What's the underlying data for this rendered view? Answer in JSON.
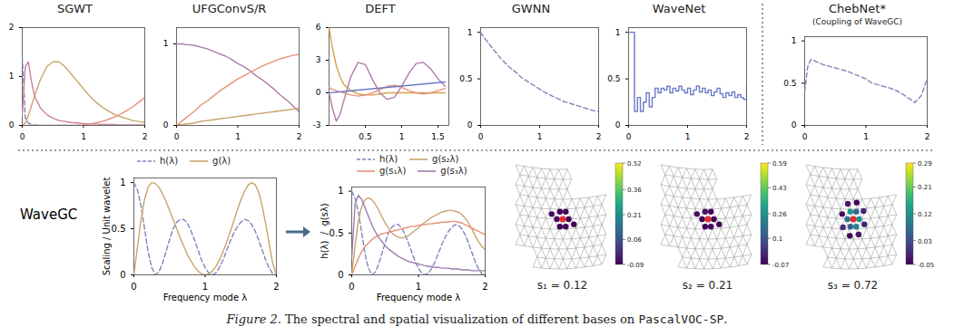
{
  "figure": {
    "row_label": "WaveGC",
    "caption": {
      "label": "Figure 2.",
      "text": "The spectral and spatial visualization of different bases on",
      "dataset": "PascalVOC-SP",
      "end": "."
    }
  },
  "chart_data": [
    {
      "type": "line",
      "title": "SGWT",
      "x": [
        0,
        0.05,
        0.1,
        0.15,
        0.2,
        0.3,
        0.4,
        0.5,
        0.6,
        0.7,
        0.8,
        0.9,
        1,
        1.1,
        1.2,
        1.3,
        1.4,
        1.5,
        1.6,
        1.7,
        1.8,
        1.9,
        2
      ],
      "xlim": [
        0,
        2
      ],
      "xticks": [
        0,
        1,
        2
      ],
      "ylim": [
        0,
        2
      ],
      "yticks": [
        0,
        1,
        2
      ],
      "series": [
        {
          "color": "#7e86b8",
          "line_style": "dashed",
          "values": [
            1.4,
            0.15,
            0.05,
            0.02,
            0.01,
            0,
            0,
            0,
            0,
            0,
            0,
            0,
            0,
            0,
            0,
            0,
            0,
            0,
            0,
            0,
            0,
            0,
            0
          ]
        },
        {
          "color": "#c9839a",
          "line_style": "solid",
          "values": [
            0.2,
            1.2,
            1.3,
            0.9,
            0.6,
            0.35,
            0.22,
            0.15,
            0.1,
            0.08,
            0.06,
            0.05,
            0.04,
            0.03,
            0.03,
            0.02,
            0.02,
            0.02,
            0.01,
            0.01,
            0.01,
            0.01,
            0.01
          ]
        },
        {
          "color": "#c9a46a",
          "line_style": "solid",
          "values": [
            0,
            0.05,
            0.2,
            0.4,
            0.6,
            0.95,
            1.2,
            1.3,
            1.3,
            1.2,
            1.05,
            0.9,
            0.75,
            0.6,
            0.48,
            0.38,
            0.3,
            0.23,
            0.18,
            0.14,
            0.1,
            0.08,
            0.06
          ]
        },
        {
          "color": "#e8907a",
          "line_style": "solid",
          "values": [
            0,
            0,
            0,
            0,
            0,
            0,
            0,
            0,
            0,
            0,
            0,
            0,
            0.01,
            0.03,
            0.05,
            0.08,
            0.12,
            0.17,
            0.23,
            0.3,
            0.38,
            0.47,
            0.57
          ]
        }
      ]
    },
    {
      "type": "line",
      "title": "UFGConvS/R",
      "x": [
        0,
        0.05,
        0.1,
        0.15,
        0.2,
        0.3,
        0.4,
        0.5,
        0.6,
        0.7,
        0.8,
        0.9,
        1,
        1.1,
        1.2,
        1.3,
        1.4,
        1.5,
        1.6,
        1.7,
        1.8,
        1.9,
        2
      ],
      "xlim": [
        0,
        2
      ],
      "xticks": [
        0,
        1,
        2
      ],
      "ylim": [
        0,
        1.2
      ],
      "yticks": [
        0,
        1
      ],
      "series": [
        {
          "color": "#b07ba8",
          "line_style": "solid",
          "values": [
            1,
            1,
            1,
            0.99,
            0.99,
            0.98,
            0.96,
            0.94,
            0.91,
            0.88,
            0.85,
            0.81,
            0.76,
            0.72,
            0.67,
            0.61,
            0.56,
            0.5,
            0.44,
            0.37,
            0.31,
            0.24,
            0.17
          ]
        },
        {
          "color": "#e8907a",
          "line_style": "solid",
          "values": [
            0,
            0.03,
            0.06,
            0.09,
            0.12,
            0.18,
            0.25,
            0.3,
            0.36,
            0.42,
            0.47,
            0.52,
            0.57,
            0.61,
            0.65,
            0.69,
            0.73,
            0.76,
            0.79,
            0.82,
            0.84,
            0.86,
            0.87
          ]
        },
        {
          "color": "#c9a46a",
          "line_style": "solid",
          "values": [
            0,
            0.01,
            0.01,
            0.02,
            0.02,
            0.03,
            0.05,
            0.06,
            0.07,
            0.08,
            0.09,
            0.1,
            0.11,
            0.12,
            0.13,
            0.14,
            0.15,
            0.16,
            0.17,
            0.18,
            0.19,
            0.2,
            0.21
          ]
        }
      ]
    },
    {
      "type": "line",
      "title": "DEFT",
      "x": [
        0,
        0.05,
        0.1,
        0.15,
        0.2,
        0.3,
        0.4,
        0.5,
        0.6,
        0.7,
        0.8,
        0.9,
        1,
        1.1,
        1.2,
        1.3,
        1.4,
        1.5,
        1.6
      ],
      "xlim": [
        0,
        1.65
      ],
      "xticks": [
        0.5,
        1,
        1.5
      ],
      "ylim": [
        -3,
        6
      ],
      "yticks": [
        -3,
        0,
        3,
        6
      ],
      "series": [
        {
          "color": "#d4a24c",
          "line_style": "solid",
          "values": [
            6,
            4,
            2.5,
            1.5,
            0.8,
            0.2,
            -0.1,
            -0.2,
            -0.2,
            -0.1,
            0,
            0,
            0,
            0,
            0,
            0,
            0,
            0,
            0
          ]
        },
        {
          "color": "#b07ba8",
          "line_style": "solid",
          "values": [
            0,
            -1.5,
            -2.6,
            -2,
            -0.8,
            1.5,
            2.8,
            2.6,
            1.2,
            0,
            -0.6,
            -0.4,
            0.6,
            1.8,
            2.7,
            2.8,
            2.2,
            1.3,
            0.6
          ]
        },
        {
          "color": "#e8907a",
          "line_style": "solid",
          "values": [
            0.5,
            0.3,
            0.2,
            0.1,
            0,
            -0.2,
            -0.3,
            -0.2,
            0,
            0.3,
            0.6,
            0.7,
            0.5,
            0.2,
            0,
            -0.1,
            0,
            0.2,
            0.4
          ]
        },
        {
          "color": "#6b78c8",
          "line_style": "solid",
          "values": [
            0,
            0.03,
            0.06,
            0.09,
            0.12,
            0.19,
            0.25,
            0.31,
            0.37,
            0.44,
            0.5,
            0.56,
            0.62,
            0.69,
            0.75,
            0.81,
            0.87,
            0.94,
            1
          ]
        }
      ]
    },
    {
      "type": "line",
      "title": "GWNN",
      "x": [
        0,
        0.05,
        0.1,
        0.15,
        0.2,
        0.3,
        0.4,
        0.5,
        0.6,
        0.7,
        0.8,
        0.9,
        1,
        1.1,
        1.2,
        1.3,
        1.4,
        1.5,
        1.6,
        1.7,
        1.8,
        1.9,
        2
      ],
      "xlim": [
        0,
        2
      ],
      "xticks": [
        0,
        1,
        2
      ],
      "ylim": [
        0,
        1.05
      ],
      "yticks": [
        0,
        0.5,
        1
      ],
      "series": [
        {
          "color": "#7e86b8",
          "line_style": "dashed",
          "values": [
            1,
            0.95,
            0.91,
            0.87,
            0.83,
            0.75,
            0.68,
            0.62,
            0.57,
            0.51,
            0.47,
            0.43,
            0.39,
            0.35,
            0.32,
            0.29,
            0.26,
            0.24,
            0.22,
            0.2,
            0.18,
            0.16,
            0.15
          ]
        }
      ]
    },
    {
      "type": "line",
      "title": "WaveNet",
      "x": [
        0,
        0.05,
        0.1,
        0.15,
        0.2,
        0.25,
        0.3,
        0.35,
        0.4,
        0.45,
        0.5,
        0.55,
        0.6,
        0.65,
        0.7,
        0.75,
        0.8,
        0.85,
        0.9,
        0.95,
        1,
        1.05,
        1.1,
        1.15,
        1.2,
        1.25,
        1.3,
        1.35,
        1.4,
        1.45,
        1.5,
        1.55,
        1.6,
        1.65,
        1.7,
        1.75,
        1.8,
        1.85,
        1.9,
        1.95,
        2
      ],
      "xlim": [
        0,
        2
      ],
      "xticks": [
        0,
        1,
        2
      ],
      "ylim": [
        0,
        1.05
      ],
      "yticks": [
        0,
        0.5,
        1
      ],
      "series": [
        {
          "color": "#6b78c8",
          "line_style": "solid",
          "type": "step",
          "values": [
            1,
            1,
            0.15,
            0.3,
            0.15,
            0.25,
            0.35,
            0.2,
            0.3,
            0.4,
            0.35,
            0.4,
            0.38,
            0.42,
            0.35,
            0.4,
            0.37,
            0.42,
            0.38,
            0.35,
            0.4,
            0.33,
            0.38,
            0.42,
            0.36,
            0.4,
            0.35,
            0.38,
            0.32,
            0.36,
            0.4,
            0.34,
            0.3,
            0.35,
            0.32,
            0.36,
            0.3,
            0.33,
            0.3,
            0.28,
            0.42
          ]
        }
      ]
    },
    {
      "type": "line",
      "title": "ChebNet*",
      "subtitle": "(Coupling of WaveGC)",
      "x": [
        0,
        0.05,
        0.1,
        0.15,
        0.2,
        0.3,
        0.4,
        0.5,
        0.6,
        0.7,
        0.8,
        0.9,
        1,
        1.1,
        1.2,
        1.3,
        1.4,
        1.5,
        1.6,
        1.7,
        1.8,
        1.9,
        2
      ],
      "xlim": [
        0,
        2
      ],
      "xticks": [
        0,
        1,
        2
      ],
      "ylim": [
        0,
        1.05
      ],
      "yticks": [
        0,
        0.5,
        1
      ],
      "series": [
        {
          "color": "#7e86b8",
          "line_style": "dashed",
          "values": [
            0.4,
            0.7,
            0.78,
            0.77,
            0.75,
            0.72,
            0.7,
            0.68,
            0.66,
            0.64,
            0.61,
            0.58,
            0.55,
            0.5,
            0.48,
            0.46,
            0.44,
            0.41,
            0.37,
            0.32,
            0.27,
            0.35,
            0.55
          ]
        }
      ]
    },
    {
      "type": "line",
      "x_label": "Frequency mode λ",
      "y_label": "Scaling / Unit wavelet",
      "legend": "top",
      "x": [
        0,
        0.05,
        0.1,
        0.15,
        0.2,
        0.25,
        0.3,
        0.35,
        0.4,
        0.45,
        0.5,
        0.55,
        0.6,
        0.65,
        0.7,
        0.75,
        0.8,
        0.85,
        0.9,
        0.95,
        1,
        1.05,
        1.1,
        1.15,
        1.2,
        1.25,
        1.3,
        1.35,
        1.4,
        1.45,
        1.5,
        1.55,
        1.6,
        1.65,
        1.7,
        1.75,
        1.8,
        1.85,
        1.9,
        1.95,
        2
      ],
      "xlim": [
        0,
        2
      ],
      "xticks": [
        0,
        1,
        2
      ],
      "ylim": [
        0,
        1.05
      ],
      "yticks": [
        0,
        0.5,
        1
      ],
      "series": [
        {
          "name": "h(λ)",
          "color": "#7e86b8",
          "line_style": "dashed",
          "values": [
            1,
            0.92,
            0.75,
            0.5,
            0.25,
            0.08,
            0,
            0.03,
            0.12,
            0.25,
            0.38,
            0.5,
            0.57,
            0.6,
            0.6,
            0.56,
            0.48,
            0.38,
            0.27,
            0.16,
            0.08,
            0.02,
            0,
            0.02,
            0.08,
            0.16,
            0.26,
            0.36,
            0.45,
            0.52,
            0.57,
            0.6,
            0.59,
            0.55,
            0.48,
            0.38,
            0.27,
            0.16,
            0.07,
            0.01,
            0
          ]
        },
        {
          "name": "g(λ)",
          "color": "#c9a46a",
          "line_style": "solid",
          "values": [
            0,
            0.3,
            0.6,
            0.82,
            0.95,
            1,
            0.99,
            0.95,
            0.88,
            0.8,
            0.7,
            0.6,
            0.5,
            0.4,
            0.31,
            0.22,
            0.15,
            0.09,
            0.04,
            0.01,
            0,
            0.01,
            0.04,
            0.09,
            0.16,
            0.25,
            0.35,
            0.46,
            0.58,
            0.7,
            0.81,
            0.9,
            0.97,
            1,
            0.98,
            0.9,
            0.75,
            0.55,
            0.33,
            0.12,
            0
          ]
        }
      ]
    },
    {
      "type": "line",
      "x_label": "Frequency mode λ",
      "y_label": "h(λ)  /  g(sλ)",
      "legend": "top",
      "x": [
        0,
        0.05,
        0.1,
        0.15,
        0.2,
        0.25,
        0.3,
        0.35,
        0.4,
        0.45,
        0.5,
        0.55,
        0.6,
        0.65,
        0.7,
        0.75,
        0.8,
        0.85,
        0.9,
        0.95,
        1,
        1.05,
        1.1,
        1.15,
        1.2,
        1.25,
        1.3,
        1.35,
        1.4,
        1.45,
        1.5,
        1.55,
        1.6,
        1.65,
        1.7,
        1.75,
        1.8,
        1.85,
        1.9,
        1.95,
        2
      ],
      "xlim": [
        0,
        2
      ],
      "xticks": [
        0,
        1,
        2
      ],
      "ylim": [
        0,
        1.05
      ],
      "yticks": [
        0,
        0.5,
        1
      ],
      "series": [
        {
          "name": "h(λ)",
          "color": "#7e86b8",
          "line_style": "dashed",
          "values": [
            1,
            0.92,
            0.75,
            0.5,
            0.25,
            0.08,
            0,
            0.03,
            0.12,
            0.25,
            0.38,
            0.5,
            0.57,
            0.6,
            0.6,
            0.56,
            0.48,
            0.38,
            0.27,
            0.16,
            0.08,
            0.02,
            0,
            0.02,
            0.08,
            0.16,
            0.26,
            0.36,
            0.45,
            0.52,
            0.57,
            0.6,
            0.59,
            0.55,
            0.48,
            0.38,
            0.27,
            0.16,
            0.07,
            0.01,
            0
          ]
        },
        {
          "name": "g(s₂λ)",
          "color": "#c9a46a",
          "line_style": "solid",
          "values": [
            0,
            0.35,
            0.65,
            0.82,
            0.9,
            0.92,
            0.9,
            0.85,
            0.78,
            0.7,
            0.62,
            0.56,
            0.5,
            0.47,
            0.45,
            0.44,
            0.45,
            0.47,
            0.5,
            0.53,
            0.56,
            0.6,
            0.63,
            0.66,
            0.69,
            0.71,
            0.73,
            0.75,
            0.76,
            0.77,
            0.77,
            0.76,
            0.75,
            0.72,
            0.68,
            0.62,
            0.55,
            0.47,
            0.4,
            0.34,
            0.3
          ]
        },
        {
          "name": "g(s₁λ)",
          "color": "#e8907a",
          "line_style": "solid",
          "values": [
            0,
            0.1,
            0.2,
            0.28,
            0.34,
            0.38,
            0.42,
            0.45,
            0.47,
            0.49,
            0.5,
            0.51,
            0.52,
            0.53,
            0.54,
            0.55,
            0.56,
            0.57,
            0.58,
            0.58,
            0.59,
            0.6,
            0.6,
            0.61,
            0.61,
            0.62,
            0.62,
            0.63,
            0.63,
            0.63,
            0.64,
            0.64,
            0.63,
            0.62,
            0.6,
            0.58,
            0.56,
            0.54,
            0.52,
            0.5,
            0.48
          ]
        },
        {
          "name": "g(s₃λ)",
          "color": "#9b7fb0",
          "line_style": "solid",
          "values": [
            0.2,
            0.85,
            0.95,
            0.9,
            0.8,
            0.7,
            0.6,
            0.52,
            0.45,
            0.4,
            0.35,
            0.31,
            0.28,
            0.25,
            0.22,
            0.2,
            0.18,
            0.16,
            0.15,
            0.14,
            0.13,
            0.12,
            0.11,
            0.1,
            0.1,
            0.09,
            0.09,
            0.08,
            0.08,
            0.08,
            0.07,
            0.07,
            0.07,
            0.06,
            0.06,
            0.06,
            0.05,
            0.05,
            0.05,
            0.05,
            0.05
          ]
        }
      ]
    }
  ],
  "meshes": [
    {
      "label": "s₁ = 0.12",
      "colorbar": {
        "range": [
          -0.09,
          0.52
        ],
        "ticks": [
          -0.09,
          0.06,
          0.21,
          0.36,
          0.52
        ]
      },
      "node_values": [
        -0.09,
        -0.08,
        -0.09,
        -0.07,
        -0.09,
        -0.08,
        -0.09,
        -0.08
      ]
    },
    {
      "label": "s₂ = 0.21",
      "colorbar": {
        "range": [
          -0.07,
          0.59
        ],
        "ticks": [
          -0.07,
          0.1,
          0.26,
          0.43,
          0.59
        ]
      },
      "node_values": [
        -0.07,
        -0.05,
        -0.06,
        -0.07,
        -0.04,
        -0.06,
        -0.07,
        -0.05
      ]
    },
    {
      "label": "s₃ = 0.72",
      "colorbar": {
        "range": [
          -0.05,
          0.29
        ],
        "ticks": [
          -0.05,
          0.03,
          0.12,
          0.21,
          0.29
        ]
      },
      "node_values": [
        0.12,
        0.1,
        0.05,
        0.08,
        0.13,
        0.06,
        -0.02,
        -0.03,
        -0.05,
        -0.01,
        -0.04,
        -0.03,
        -0.05,
        -0.02
      ]
    }
  ]
}
